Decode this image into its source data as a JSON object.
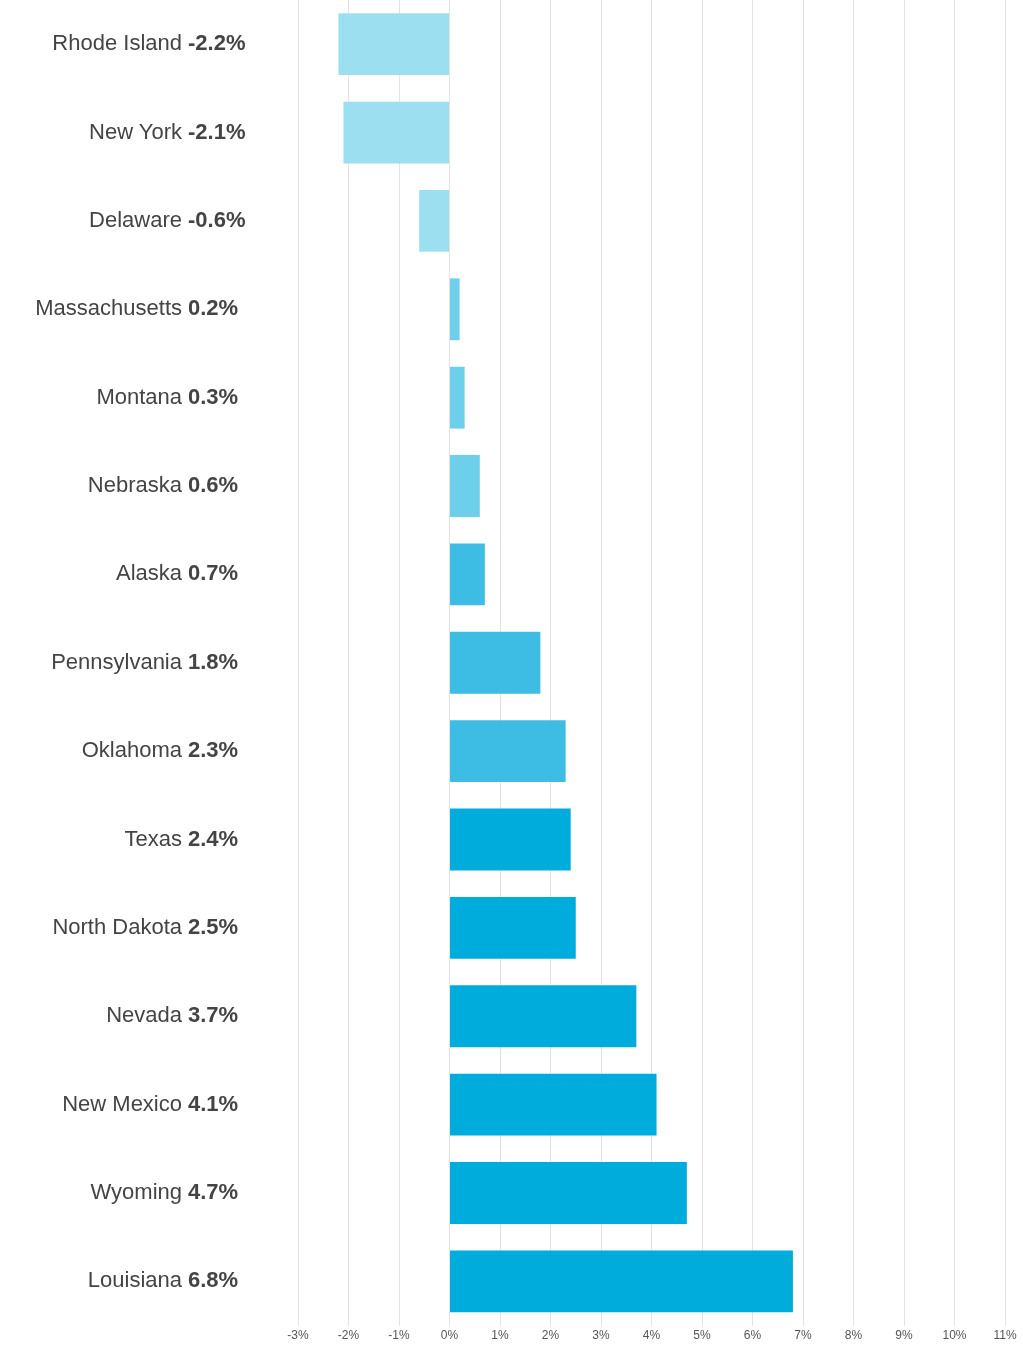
{
  "chart_data": {
    "type": "bar",
    "orientation": "horizontal",
    "categories": [
      "Rhode Island",
      "New York",
      "Delaware",
      "Massachusetts",
      "Montana",
      "Nebraska",
      "Alaska",
      "Pennsylvania",
      "Oklahoma",
      "Texas",
      "North Dakota",
      "Nevada",
      "New Mexico",
      "Wyoming",
      "Louisiana"
    ],
    "values": [
      -2.2,
      -2.1,
      -0.6,
      0.2,
      0.3,
      0.6,
      0.7,
      1.8,
      2.3,
      2.4,
      2.5,
      3.7,
      4.1,
      4.7,
      6.8
    ],
    "value_labels": [
      "-2.2%",
      "-2.1%",
      "-0.6%",
      "0.2%",
      "0.3%",
      "0.6%",
      "0.7%",
      "1.8%",
      "2.3%",
      "2.4%",
      "2.5%",
      "3.7%",
      "4.1%",
      "4.7%",
      "6.8%"
    ],
    "colors": [
      "#9cdff0",
      "#9cdff0",
      "#9cdff0",
      "#6dcfe9",
      "#6dcfe9",
      "#6dcfe9",
      "#3dbde3",
      "#3dbde3",
      "#3dbde3",
      "#00acdc",
      "#00acdc",
      "#00acdc",
      "#00acdc",
      "#00acdc",
      "#00acdc"
    ],
    "xlim": [
      -3,
      11
    ],
    "xticks": [
      {
        "value": -3,
        "label": "-3%"
      },
      {
        "value": -2,
        "label": "-2%"
      },
      {
        "value": -1,
        "label": "-1%"
      },
      {
        "value": 0,
        "label": "0%"
      },
      {
        "value": 1,
        "label": "1%"
      },
      {
        "value": 2,
        "label": "2%"
      },
      {
        "value": 3,
        "label": "3%"
      },
      {
        "value": 4,
        "label": "4%"
      },
      {
        "value": 5,
        "label": "5%"
      },
      {
        "value": 6,
        "label": "6%"
      },
      {
        "value": 7,
        "label": "7%"
      },
      {
        "value": 8,
        "label": "8%"
      },
      {
        "value": 9,
        "label": "9%"
      },
      {
        "value": 10,
        "label": "10%"
      },
      {
        "value": 11,
        "label": "11%"
      }
    ],
    "grid": "x",
    "legend": false
  }
}
